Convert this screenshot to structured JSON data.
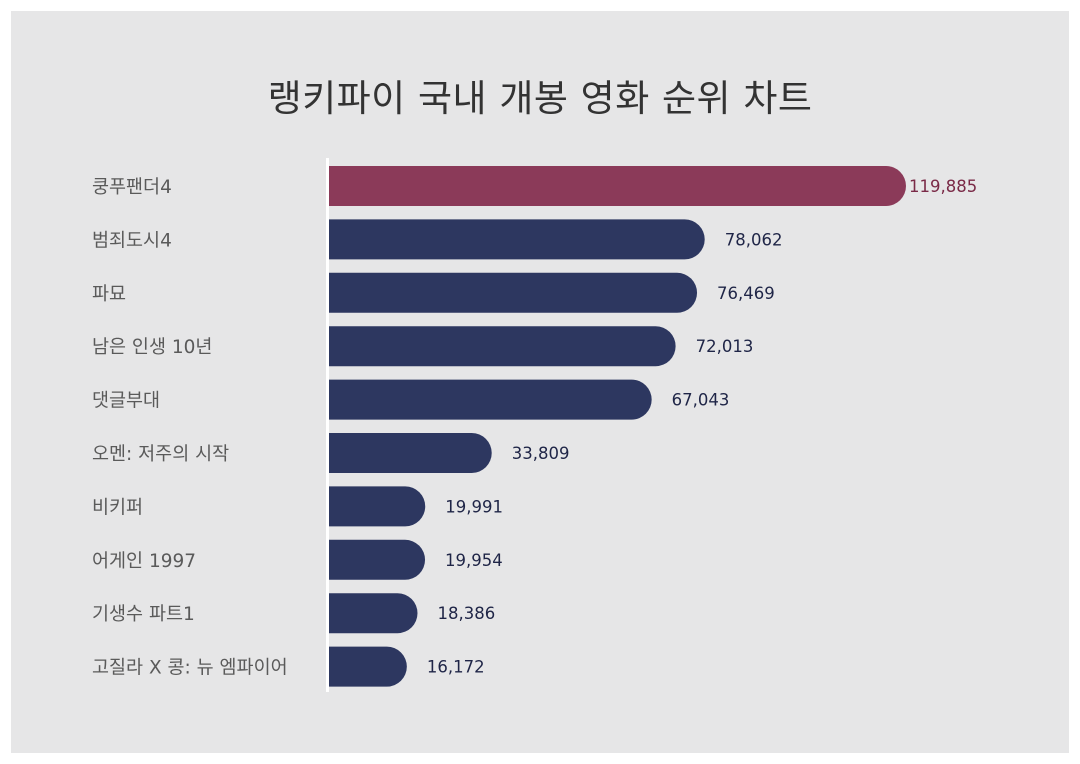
{
  "chart_data": {
    "type": "bar",
    "orientation": "horizontal",
    "title": "랭키파이 국내 개봉 영화 순위 차트",
    "categories": [
      "쿵푸팬더4",
      "범죄도시4",
      "파묘",
      "남은 인생 10년",
      "댓글부대",
      "오멘: 저주의 시작",
      "비키퍼",
      "어게인 1997",
      "기생수 파트1",
      "고질라 X 콩: 뉴 엠파이어"
    ],
    "values": [
      119885,
      78062,
      76469,
      72013,
      67043,
      33809,
      19991,
      19954,
      18386,
      16172
    ],
    "value_labels": [
      "119,885",
      "78,062",
      "76,469",
      "72,013",
      "67,043",
      "33,809",
      "19,991",
      "19,954",
      "18,386",
      "16,172"
    ],
    "xlim": [
      0,
      119885
    ],
    "grid": false,
    "highlight_index": 0,
    "colors": {
      "highlight": "#8b3a59",
      "bar": "#2d3760",
      "highlight_label": "#7a2a47",
      "label": "#1f2547",
      "axis": "#ffffff",
      "background": "#e6e6e7"
    }
  }
}
